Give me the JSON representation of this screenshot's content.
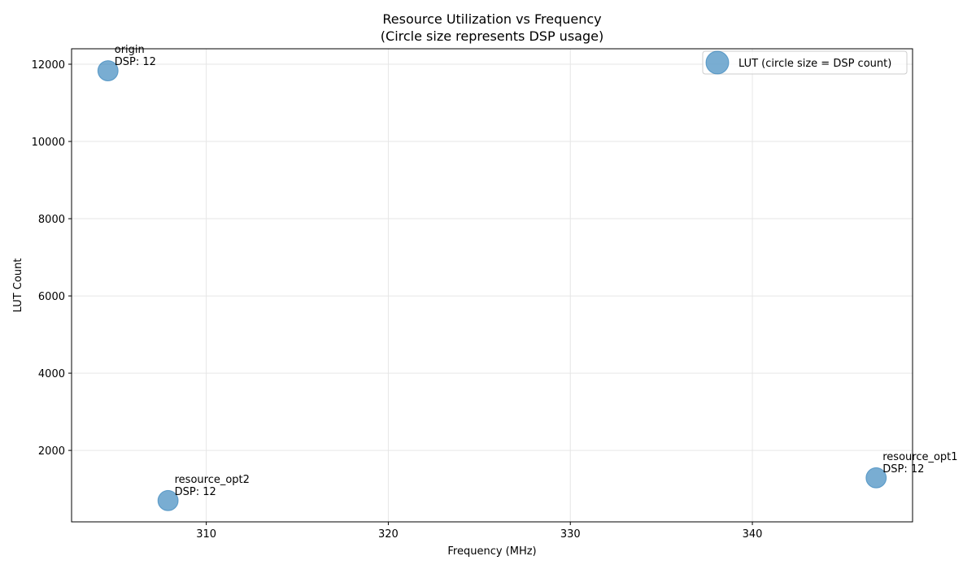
{
  "chart_data": {
    "type": "scatter",
    "title": "Resource Utilization vs Frequency",
    "subtitle": "(Circle size represents DSP usage)",
    "xlabel": "Frequency (MHz)",
    "ylabel": "LUT Count",
    "xlim": [
      302.6,
      348.8
    ],
    "ylim": [
      150,
      12400
    ],
    "xticks": [
      310,
      320,
      330,
      340
    ],
    "yticks": [
      2000,
      4000,
      6000,
      8000,
      10000,
      12000
    ],
    "grid": true,
    "legend_position": "top-right",
    "series": [
      {
        "name": "LUT (circle size = DSP count)",
        "color": "#1f77b4",
        "points": [
          {
            "label": "origin",
            "annotation": "DSP: 12",
            "x": 304.6,
            "y": 11830,
            "dsp": 12
          },
          {
            "label": "resource_opt2",
            "annotation": "DSP: 12",
            "x": 307.9,
            "y": 700,
            "dsp": 12
          },
          {
            "label": "resource_opt1",
            "annotation": "DSP: 12",
            "x": 346.8,
            "y": 1290,
            "dsp": 12
          }
        ]
      }
    ]
  }
}
